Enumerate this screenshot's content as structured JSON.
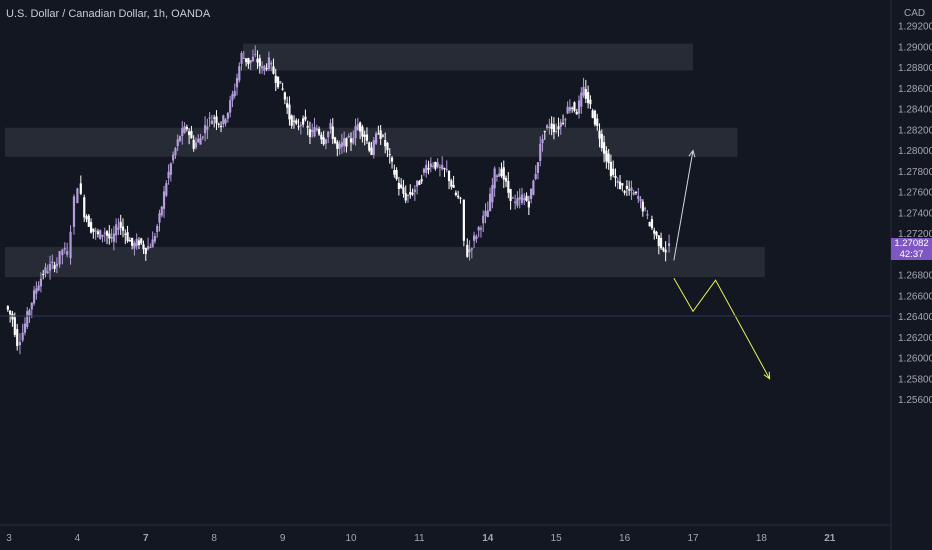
{
  "header": {
    "title": "U.S. Dollar / Canadian Dollar, 1h, OANDA",
    "currency": "CAD"
  },
  "price_tag": {
    "price": "1.27082",
    "countdown": "42:37",
    "value": 1.27082
  },
  "colors": {
    "background": "#131722",
    "up_candle": "#b39ddb",
    "down_candle": "#ffffff",
    "zone": "#2a2e39",
    "arrow_up": "#d1d4dc",
    "arrow_down": "#e8f15a",
    "accent": "#7e57c2"
  },
  "chart_data": {
    "type": "candlestick",
    "title": "U.S. Dollar / Canadian Dollar, 1h, OANDA",
    "ylabel": "CAD",
    "ylim": [
      1.2552,
      1.2942
    ],
    "y_ticks": [
      "1.29200",
      "1.29000",
      "1.28800",
      "1.28600",
      "1.28400",
      "1.28200",
      "1.28000",
      "1.27800",
      "1.27600",
      "1.27400",
      "1.27200",
      "1.26800",
      "1.26600",
      "1.26400",
      "1.26200",
      "1.26000",
      "1.25800",
      "1.25600"
    ],
    "x_labels": [
      {
        "label": "3",
        "day": 3.0,
        "bold": false
      },
      {
        "label": "4",
        "day": 4.0,
        "bold": false
      },
      {
        "label": "7",
        "day": 5.0,
        "bold": true
      },
      {
        "label": "8",
        "day": 6.0,
        "bold": false
      },
      {
        "label": "9",
        "day": 7.0,
        "bold": false
      },
      {
        "label": "10",
        "day": 8.0,
        "bold": false
      },
      {
        "label": "11",
        "day": 9.0,
        "bold": false
      },
      {
        "label": "14",
        "day": 10.0,
        "bold": true
      },
      {
        "label": "15",
        "day": 11.0,
        "bold": false
      },
      {
        "label": "16",
        "day": 12.0,
        "bold": false
      },
      {
        "label": "17",
        "day": 13.0,
        "bold": false
      },
      {
        "label": "18",
        "day": 14.0,
        "bold": false
      },
      {
        "label": "21",
        "day": 15.0,
        "bold": true
      }
    ],
    "close_path": [
      [
        2.95,
        1.265
      ],
      [
        3.05,
        1.2638
      ],
      [
        3.12,
        1.2615
      ],
      [
        3.2,
        1.2625
      ],
      [
        3.3,
        1.2648
      ],
      [
        3.4,
        1.2668
      ],
      [
        3.5,
        1.2682
      ],
      [
        3.6,
        1.2688
      ],
      [
        3.7,
        1.2692
      ],
      [
        3.78,
        1.2705
      ],
      [
        3.85,
        1.27
      ],
      [
        3.9,
        1.2725
      ],
      [
        3.95,
        1.2752
      ],
      [
        4.0,
        1.2768
      ],
      [
        4.05,
        1.2755
      ],
      [
        4.1,
        1.274
      ],
      [
        4.2,
        1.2725
      ],
      [
        4.3,
        1.2718
      ],
      [
        4.4,
        1.2722
      ],
      [
        4.5,
        1.2712
      ],
      [
        4.6,
        1.273
      ],
      [
        4.7,
        1.272
      ],
      [
        4.8,
        1.2708
      ],
      [
        4.9,
        1.2712
      ],
      [
        5.0,
        1.2705
      ],
      [
        5.1,
        1.2712
      ],
      [
        5.2,
        1.2735
      ],
      [
        5.3,
        1.277
      ],
      [
        5.4,
        1.2795
      ],
      [
        5.5,
        1.2815
      ],
      [
        5.6,
        1.2822
      ],
      [
        5.7,
        1.2805
      ],
      [
        5.8,
        1.2812
      ],
      [
        5.9,
        1.2828
      ],
      [
        6.0,
        1.2832
      ],
      [
        6.1,
        1.2825
      ],
      [
        6.2,
        1.2838
      ],
      [
        6.3,
        1.286
      ],
      [
        6.4,
        1.2892
      ],
      [
        6.5,
        1.2885
      ],
      [
        6.6,
        1.289
      ],
      [
        6.7,
        1.2878
      ],
      [
        6.8,
        1.2885
      ],
      [
        6.9,
        1.287
      ],
      [
        7.0,
        1.2858
      ],
      [
        7.1,
        1.2832
      ],
      [
        7.2,
        1.2822
      ],
      [
        7.3,
        1.283
      ],
      [
        7.4,
        1.2815
      ],
      [
        7.5,
        1.2822
      ],
      [
        7.6,
        1.281
      ],
      [
        7.7,
        1.2822
      ],
      [
        7.8,
        1.28
      ],
      [
        7.9,
        1.2808
      ],
      [
        8.0,
        1.281
      ],
      [
        8.1,
        1.2825
      ],
      [
        8.2,
        1.2815
      ],
      [
        8.3,
        1.2798
      ],
      [
        8.4,
        1.282
      ],
      [
        8.5,
        1.2805
      ],
      [
        8.6,
        1.2785
      ],
      [
        8.7,
        1.2765
      ],
      [
        8.8,
        1.2755
      ],
      [
        8.9,
        1.276
      ],
      [
        9.0,
        1.277
      ],
      [
        9.1,
        1.2785
      ],
      [
        9.2,
        1.2788
      ],
      [
        9.3,
        1.2782
      ],
      [
        9.4,
        1.278
      ],
      [
        9.5,
        1.276
      ],
      [
        9.6,
        1.275
      ],
      [
        9.65,
        1.2712
      ],
      [
        9.7,
        1.27
      ],
      [
        9.8,
        1.2715
      ],
      [
        9.9,
        1.273
      ],
      [
        10.0,
        1.2742
      ],
      [
        10.1,
        1.2778
      ],
      [
        10.2,
        1.278
      ],
      [
        10.3,
        1.276
      ],
      [
        10.4,
        1.2748
      ],
      [
        10.5,
        1.2755
      ],
      [
        10.6,
        1.275
      ],
      [
        10.7,
        1.278
      ],
      [
        10.8,
        1.2815
      ],
      [
        10.9,
        1.2825
      ],
      [
        11.0,
        1.282
      ],
      [
        11.1,
        1.283
      ],
      [
        11.2,
        1.2845
      ],
      [
        11.3,
        1.2838
      ],
      [
        11.4,
        1.2858
      ],
      [
        11.5,
        1.2842
      ],
      [
        11.6,
        1.2822
      ],
      [
        11.7,
        1.28
      ],
      [
        11.8,
        1.278
      ],
      [
        11.9,
        1.2768
      ],
      [
        12.0,
        1.2762
      ],
      [
        12.1,
        1.276
      ],
      [
        12.2,
        1.2755
      ],
      [
        12.3,
        1.274
      ],
      [
        12.4,
        1.2725
      ],
      [
        12.5,
        1.2712
      ],
      [
        12.6,
        1.2704
      ],
      [
        12.65,
        1.27082
      ]
    ],
    "zones": [
      {
        "label": "zone-1",
        "x0": 6.42,
        "x1": 13.0,
        "y0": 1.2877,
        "y1": 1.2903
      },
      {
        "label": "zone-2",
        "x0": 2.94,
        "x1": 13.65,
        "y0": 1.2794,
        "y1": 1.2822
      },
      {
        "label": "zone-3",
        "x0": 2.94,
        "x1": 14.05,
        "y0": 1.2678,
        "y1": 1.2707
      }
    ],
    "projections": [
      {
        "name": "bullish",
        "points": [
          [
            12.72,
            1.2694
          ],
          [
            13.0,
            1.28
          ]
        ]
      },
      {
        "name": "bearish",
        "points": [
          [
            12.72,
            1.2677
          ],
          [
            13.0,
            1.2645
          ],
          [
            13.33,
            1.2675
          ],
          [
            14.12,
            1.258
          ]
        ]
      }
    ]
  }
}
